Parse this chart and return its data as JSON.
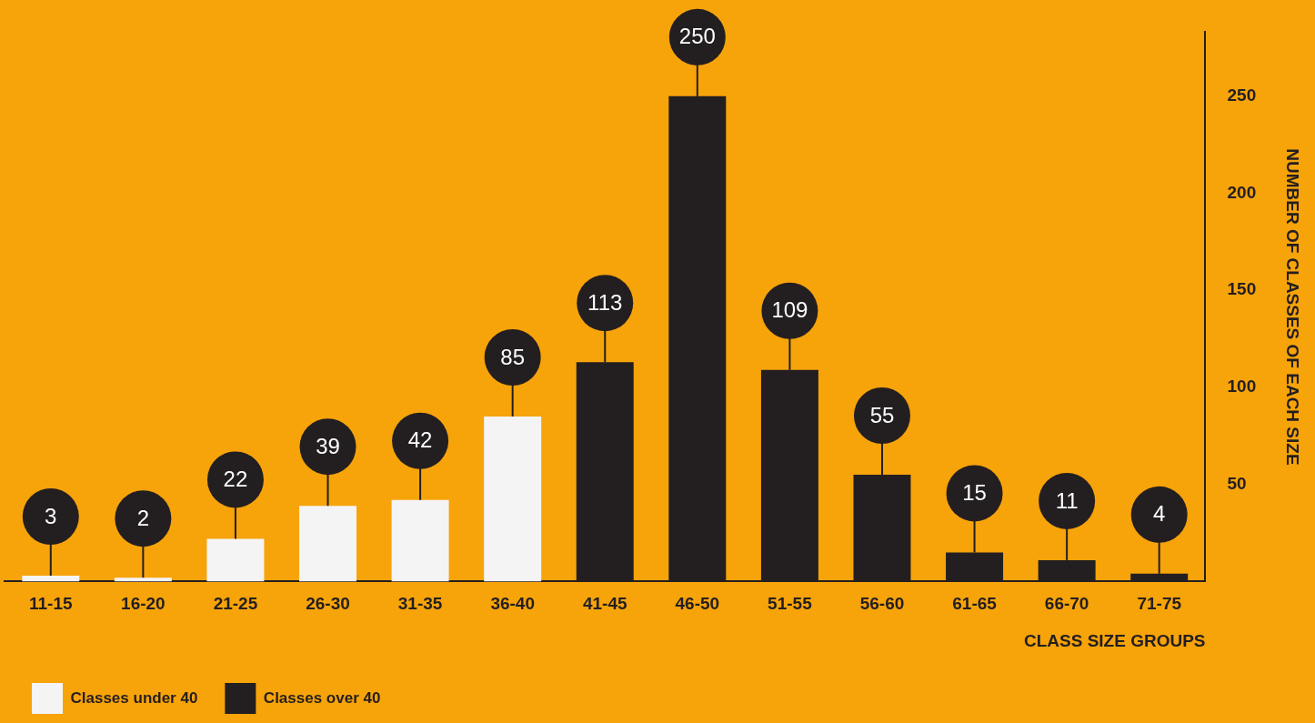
{
  "chart_data": {
    "type": "bar",
    "xlabel": "CLASS SIZE GROUPS",
    "ylabel": "NUMBER OF CLASSES OF EACH SIZE",
    "categories": [
      "11-15",
      "16-20",
      "21-25",
      "26-30",
      "31-35",
      "36-40",
      "41-45",
      "46-50",
      "51-55",
      "56-60",
      "61-65",
      "66-70",
      "71-75"
    ],
    "series": [
      {
        "name": "Classes under 40",
        "color": "#f4f4f4",
        "values": [
          3,
          2,
          22,
          39,
          42,
          85,
          null,
          null,
          null,
          null,
          null,
          null,
          null
        ]
      },
      {
        "name": "Classes over 40",
        "color": "#231f20",
        "values": [
          null,
          null,
          null,
          null,
          null,
          null,
          113,
          250,
          109,
          55,
          15,
          11,
          4
        ]
      }
    ],
    "ylim": [
      0,
      283
    ],
    "yticks": [
      50,
      100,
      150,
      200,
      250
    ],
    "grid": false,
    "legend": "bottom left",
    "data_labels": true
  }
}
